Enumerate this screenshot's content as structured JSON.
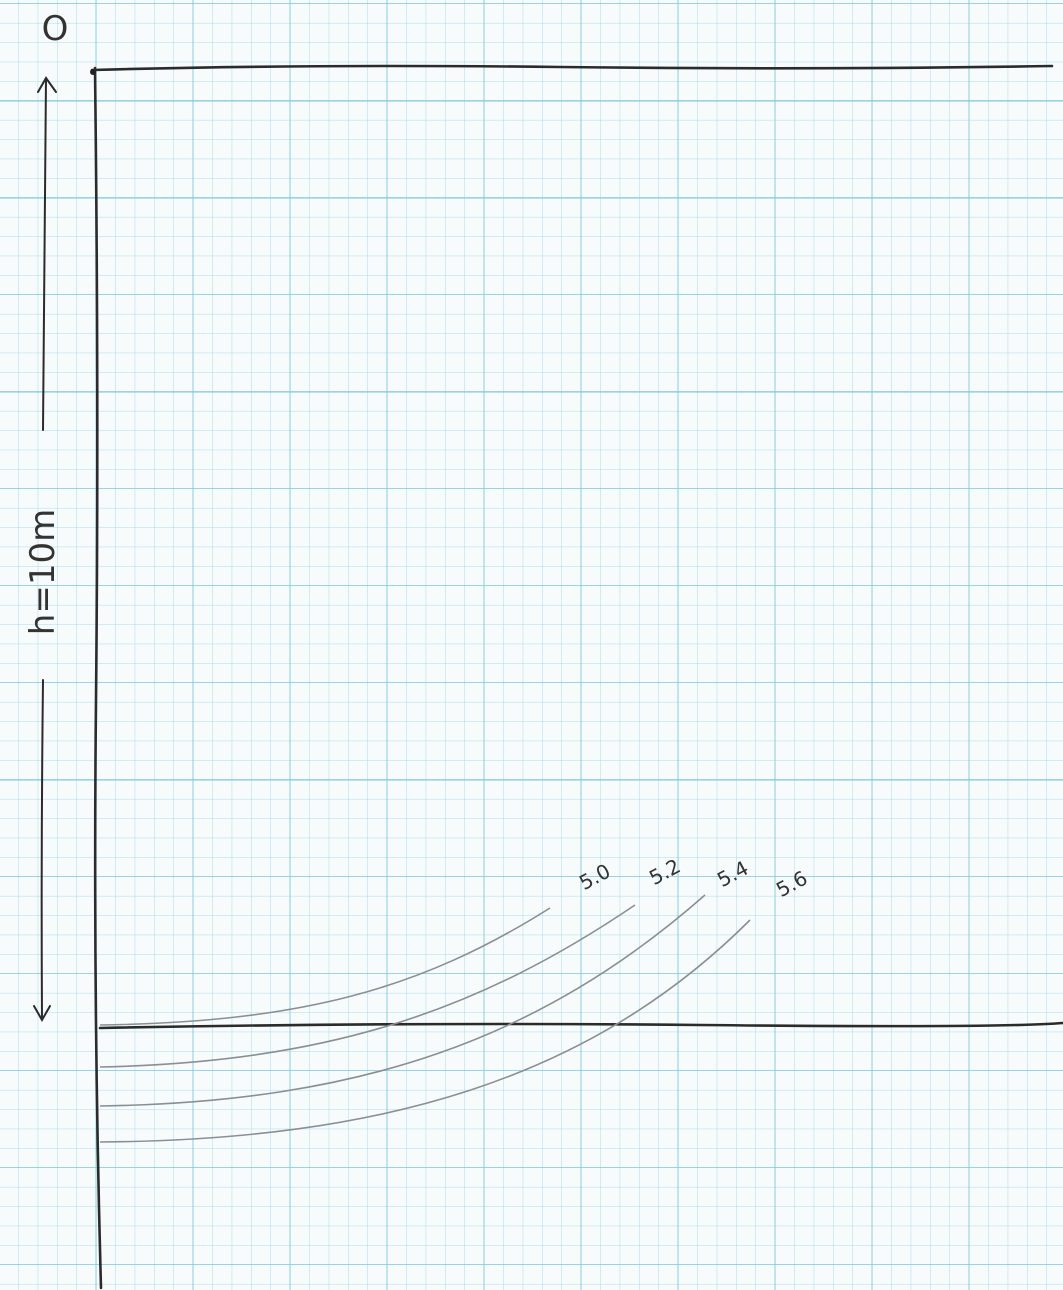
{
  "labels": {
    "origin": "O",
    "height": "h=10m"
  },
  "curves": [
    {
      "label": "5.0"
    },
    {
      "label": "5.2"
    },
    {
      "label": "5.4"
    },
    {
      "label": "5.6"
    }
  ]
}
